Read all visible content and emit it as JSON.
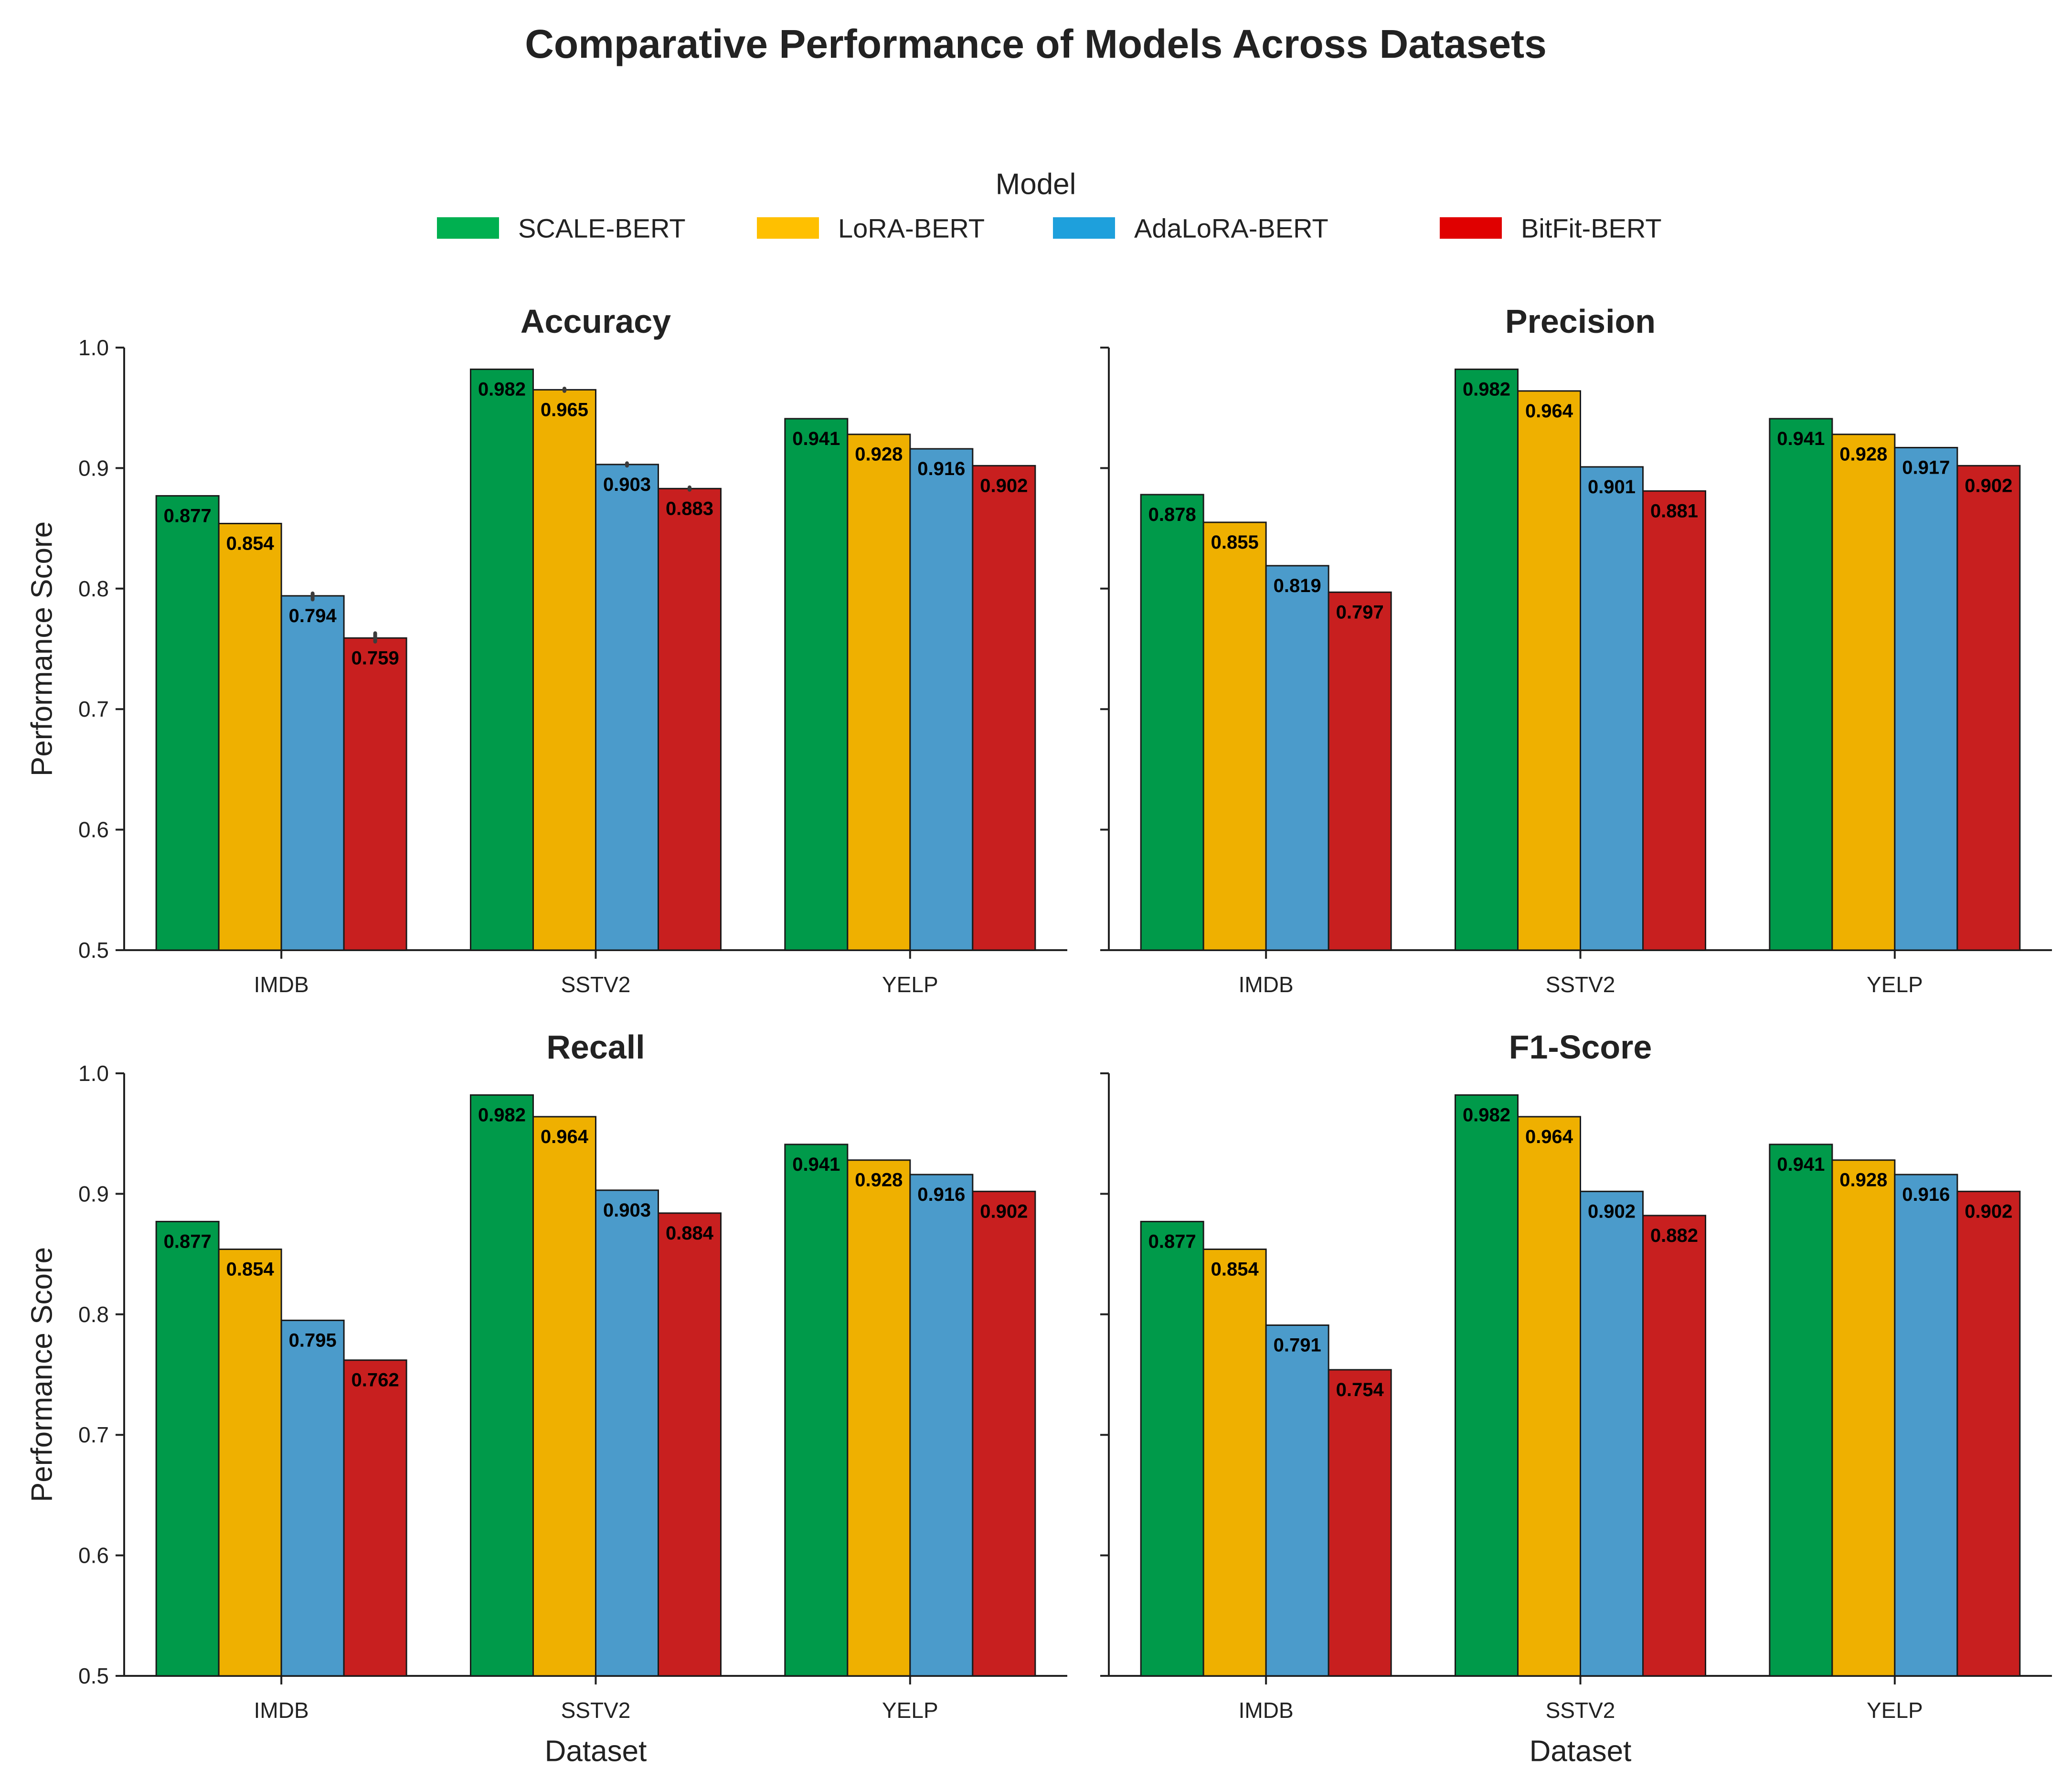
{
  "title": "Comparative Performance of Models Across Datasets",
  "legend": {
    "title": "Model",
    "placement": "top-center"
  },
  "colors": {
    "SCALE-BERT": "#009a4a",
    "LoRA-BERT": "#efb000",
    "AdaLoRA-BERT": "#4b9bcb",
    "BitFit-BERT": "#c81f1f",
    "legend_SCALE-BERT": "#00b050",
    "legend_LoRA-BERT": "#ffc000",
    "legend_AdaLoRA-BERT": "#1ea0dc",
    "legend_BitFit-BERT": "#e00000"
  },
  "chart_data": [
    {
      "type": "bar",
      "title": "Accuracy",
      "xlabel": "",
      "ylabel": "Performance Score",
      "ylim": [
        0.5,
        1.0
      ],
      "yticks": [
        "0.5",
        "0.6",
        "0.7",
        "0.8",
        "0.9",
        "1.0"
      ],
      "categories": [
        "IMDB",
        "SSTV2",
        "YELP"
      ],
      "series": [
        {
          "name": "SCALE-BERT",
          "values": [
            0.877,
            0.982,
            0.941
          ],
          "labels": [
            "0.877",
            "0.982",
            "0.941"
          ]
        },
        {
          "name": "LoRA-BERT",
          "values": [
            0.854,
            0.965,
            0.928
          ],
          "labels": [
            "0.854",
            "0.965",
            "0.928"
          ]
        },
        {
          "name": "AdaLoRA-BERT",
          "values": [
            0.794,
            0.903,
            0.916
          ],
          "labels": [
            "0.794",
            "0.903",
            "0.916"
          ]
        },
        {
          "name": "BitFit-BERT",
          "values": [
            0.759,
            0.883,
            0.902
          ],
          "labels": [
            "0.759",
            "0.883",
            "0.902"
          ]
        }
      ],
      "error_bars": [
        {
          "series": "LoRA-BERT",
          "category": "SSTV2",
          "low": 0.964,
          "high": 0.966
        },
        {
          "series": "AdaLoRA-BERT",
          "category": "IMDB",
          "low": 0.791,
          "high": 0.796
        },
        {
          "series": "AdaLoRA-BERT",
          "category": "SSTV2",
          "low": 0.902,
          "high": 0.904
        },
        {
          "series": "BitFit-BERT",
          "category": "IMDB",
          "low": 0.756,
          "high": 0.763
        },
        {
          "series": "BitFit-BERT",
          "category": "SSTV2",
          "low": 0.882,
          "high": 0.884
        }
      ]
    },
    {
      "type": "bar",
      "title": "Precision",
      "xlabel": "",
      "ylabel": "",
      "ylim": [
        0.5,
        1.0
      ],
      "yticks": [
        "0.5",
        "0.6",
        "0.7",
        "0.8",
        "0.9",
        "1.0"
      ],
      "categories": [
        "IMDB",
        "SSTV2",
        "YELP"
      ],
      "series": [
        {
          "name": "SCALE-BERT",
          "values": [
            0.878,
            0.982,
            0.941
          ],
          "labels": [
            "0.878",
            "0.982",
            "0.941"
          ]
        },
        {
          "name": "LoRA-BERT",
          "values": [
            0.855,
            0.964,
            0.928
          ],
          "labels": [
            "0.855",
            "0.964",
            "0.928"
          ]
        },
        {
          "name": "AdaLoRA-BERT",
          "values": [
            0.819,
            0.901,
            0.917
          ],
          "labels": [
            "0.819",
            "0.901",
            "0.917"
          ]
        },
        {
          "name": "BitFit-BERT",
          "values": [
            0.797,
            0.881,
            0.902
          ],
          "labels": [
            "0.797",
            "0.881",
            "0.902"
          ]
        }
      ],
      "error_bars": []
    },
    {
      "type": "bar",
      "title": "Recall",
      "xlabel": "Dataset",
      "ylabel": "Performance Score",
      "ylim": [
        0.5,
        1.0
      ],
      "yticks": [
        "0.5",
        "0.6",
        "0.7",
        "0.8",
        "0.9",
        "1.0"
      ],
      "categories": [
        "IMDB",
        "SSTV2",
        "YELP"
      ],
      "series": [
        {
          "name": "SCALE-BERT",
          "values": [
            0.877,
            0.982,
            0.941
          ],
          "labels": [
            "0.877",
            "0.982",
            "0.941"
          ]
        },
        {
          "name": "LoRA-BERT",
          "values": [
            0.854,
            0.964,
            0.928
          ],
          "labels": [
            "0.854",
            "0.964",
            "0.928"
          ]
        },
        {
          "name": "AdaLoRA-BERT",
          "values": [
            0.795,
            0.903,
            0.916
          ],
          "labels": [
            "0.795",
            "0.903",
            "0.916"
          ]
        },
        {
          "name": "BitFit-BERT",
          "values": [
            0.762,
            0.884,
            0.902
          ],
          "labels": [
            "0.762",
            "0.884",
            "0.902"
          ]
        }
      ],
      "error_bars": []
    },
    {
      "type": "bar",
      "title": "F1-Score",
      "xlabel": "Dataset",
      "ylabel": "",
      "ylim": [
        0.5,
        1.0
      ],
      "yticks": [
        "0.5",
        "0.6",
        "0.7",
        "0.8",
        "0.9",
        "1.0"
      ],
      "categories": [
        "IMDB",
        "SSTV2",
        "YELP"
      ],
      "series": [
        {
          "name": "SCALE-BERT",
          "values": [
            0.877,
            0.982,
            0.941
          ],
          "labels": [
            "0.877",
            "0.982",
            "0.941"
          ]
        },
        {
          "name": "LoRA-BERT",
          "values": [
            0.854,
            0.964,
            0.928
          ],
          "labels": [
            "0.854",
            "0.964",
            "0.928"
          ]
        },
        {
          "name": "AdaLoRA-BERT",
          "values": [
            0.791,
            0.902,
            0.916
          ],
          "labels": [
            "0.791",
            "0.902",
            "0.916"
          ]
        },
        {
          "name": "BitFit-BERT",
          "values": [
            0.754,
            0.882,
            0.902
          ],
          "labels": [
            "0.754",
            "0.882",
            "0.902"
          ]
        }
      ],
      "error_bars": []
    }
  ]
}
